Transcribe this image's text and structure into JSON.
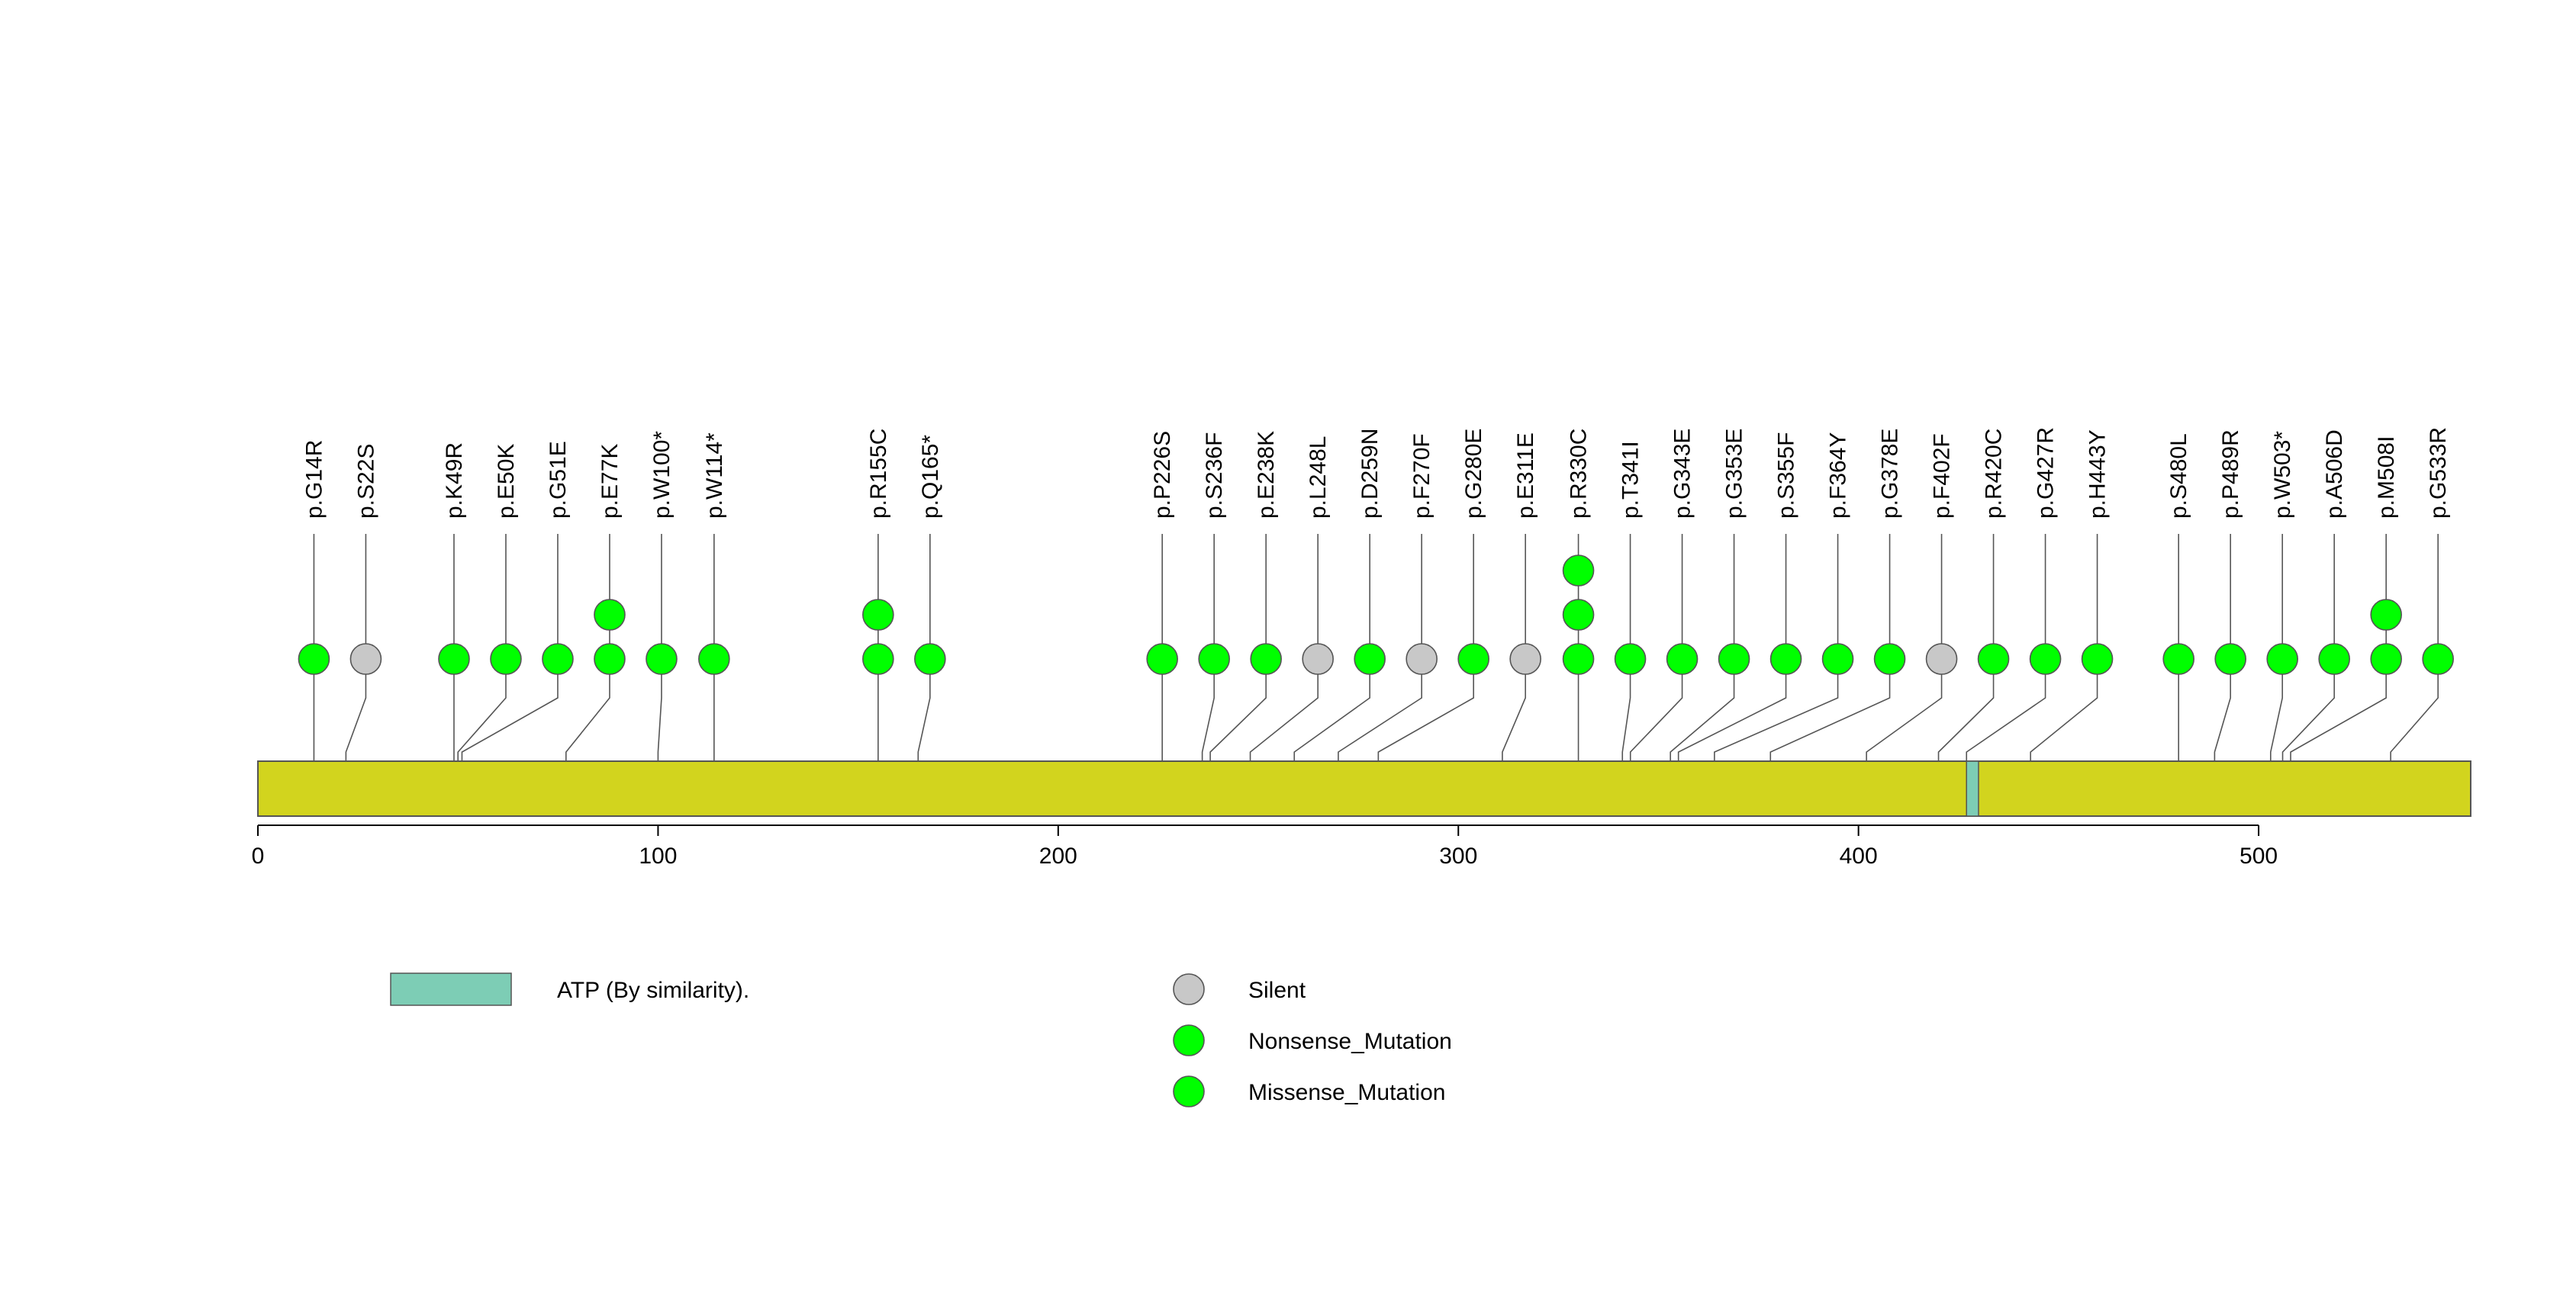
{
  "chart_data": {
    "type": "lollipop",
    "title": "",
    "xlabel": "",
    "ylabel": "",
    "xlim": [
      0,
      553
    ],
    "x_ticks": [
      0,
      100,
      200,
      300,
      400,
      500
    ],
    "protein_length": 553,
    "domain_color": "#D2D41E",
    "domains": [
      {
        "name": "ATP (By similarity).",
        "start": 427,
        "end": 430,
        "color": "#7DCDB5"
      }
    ],
    "mutations": [
      {
        "label": "p.G14R",
        "position": 14,
        "site": 14,
        "types": [
          "Missense_Mutation"
        ]
      },
      {
        "label": "p.S22S",
        "position": 22,
        "site": 22,
        "types": [
          "Silent"
        ]
      },
      {
        "label": "p.K49R",
        "position": 49,
        "site": 49,
        "types": [
          "Missense_Mutation"
        ]
      },
      {
        "label": "p.E50K",
        "position": 50,
        "site": 50,
        "types": [
          "Missense_Mutation"
        ]
      },
      {
        "label": "p.G51E",
        "position": 51,
        "site": 51,
        "types": [
          "Missense_Mutation"
        ]
      },
      {
        "label": "p.E77K",
        "position": 77,
        "site": 77,
        "types": [
          "Missense_Mutation",
          "Missense_Mutation"
        ]
      },
      {
        "label": "p.W100*",
        "position": 100,
        "site": 100,
        "types": [
          "Nonsense_Mutation"
        ]
      },
      {
        "label": "p.W114*",
        "position": 114,
        "site": 114,
        "types": [
          "Nonsense_Mutation"
        ]
      },
      {
        "label": "p.R155C",
        "position": 155,
        "site": 155,
        "types": [
          "Missense_Mutation",
          "Missense_Mutation"
        ]
      },
      {
        "label": "p.Q165*",
        "position": 165,
        "site": 165,
        "types": [
          "Nonsense_Mutation"
        ]
      },
      {
        "label": "p.P226S",
        "position": 226,
        "site": 226,
        "types": [
          "Missense_Mutation"
        ]
      },
      {
        "label": "p.S236F",
        "position": 236,
        "site": 236,
        "types": [
          "Missense_Mutation"
        ]
      },
      {
        "label": "p.E238K",
        "position": 238,
        "site": 238,
        "types": [
          "Missense_Mutation"
        ]
      },
      {
        "label": "p.L248L",
        "position": 248,
        "site": 248,
        "types": [
          "Silent"
        ]
      },
      {
        "label": "p.D259N",
        "position": 259,
        "site": 259,
        "types": [
          "Missense_Mutation"
        ]
      },
      {
        "label": "p.F270F",
        "position": 270,
        "site": 270,
        "types": [
          "Silent"
        ]
      },
      {
        "label": "p.G280E",
        "position": 280,
        "site": 280,
        "types": [
          "Missense_Mutation"
        ]
      },
      {
        "label": "p.E311E",
        "position": 311,
        "site": 311,
        "types": [
          "Silent"
        ]
      },
      {
        "label": "p.R330C",
        "position": 330,
        "site": 330,
        "types": [
          "Missense_Mutation",
          "Missense_Mutation",
          "Missense_Mutation"
        ]
      },
      {
        "label": "p.T341I",
        "position": 341,
        "site": 341,
        "types": [
          "Missense_Mutation"
        ]
      },
      {
        "label": "p.G343E",
        "position": 343,
        "site": 343,
        "types": [
          "Missense_Mutation"
        ]
      },
      {
        "label": "p.G353E",
        "position": 353,
        "site": 353,
        "types": [
          "Missense_Mutation"
        ]
      },
      {
        "label": "p.S355F",
        "position": 355,
        "site": 355,
        "types": [
          "Missense_Mutation"
        ]
      },
      {
        "label": "p.F364Y",
        "position": 364,
        "site": 364,
        "types": [
          "Missense_Mutation"
        ]
      },
      {
        "label": "p.G378E",
        "position": 378,
        "site": 378,
        "types": [
          "Missense_Mutation"
        ]
      },
      {
        "label": "p.F402F",
        "position": 402,
        "site": 402,
        "types": [
          "Silent"
        ]
      },
      {
        "label": "p.R420C",
        "position": 420,
        "site": 420,
        "types": [
          "Missense_Mutation"
        ]
      },
      {
        "label": "p.G427R",
        "position": 427,
        "site": 427,
        "types": [
          "Missense_Mutation"
        ]
      },
      {
        "label": "p.H443Y",
        "position": 443,
        "site": 443,
        "types": [
          "Missense_Mutation"
        ]
      },
      {
        "label": "p.S480L",
        "position": 480,
        "site": 480,
        "types": [
          "Missense_Mutation"
        ]
      },
      {
        "label": "p.P489R",
        "position": 489,
        "site": 489,
        "types": [
          "Missense_Mutation"
        ]
      },
      {
        "label": "p.W503*",
        "position": 503,
        "site": 503,
        "types": [
          "Nonsense_Mutation"
        ]
      },
      {
        "label": "p.A506D",
        "position": 506,
        "site": 506,
        "types": [
          "Missense_Mutation"
        ]
      },
      {
        "label": "p.M508I",
        "position": 508,
        "site": 508,
        "types": [
          "Missense_Mutation",
          "Missense_Mutation"
        ]
      },
      {
        "label": "p.G533R",
        "position": 533,
        "site": 533,
        "types": [
          "Missense_Mutation"
        ]
      }
    ],
    "legend": {
      "domains": [
        {
          "label": "ATP (By similarity).",
          "color": "#7DCDB5"
        }
      ],
      "mutation_types": [
        {
          "label": "Silent",
          "color": "#C8C8C8"
        },
        {
          "label": "Nonsense_Mutation",
          "color": "#00FF00"
        },
        {
          "label": "Missense_Mutation",
          "color": "#00FF00"
        }
      ]
    }
  }
}
